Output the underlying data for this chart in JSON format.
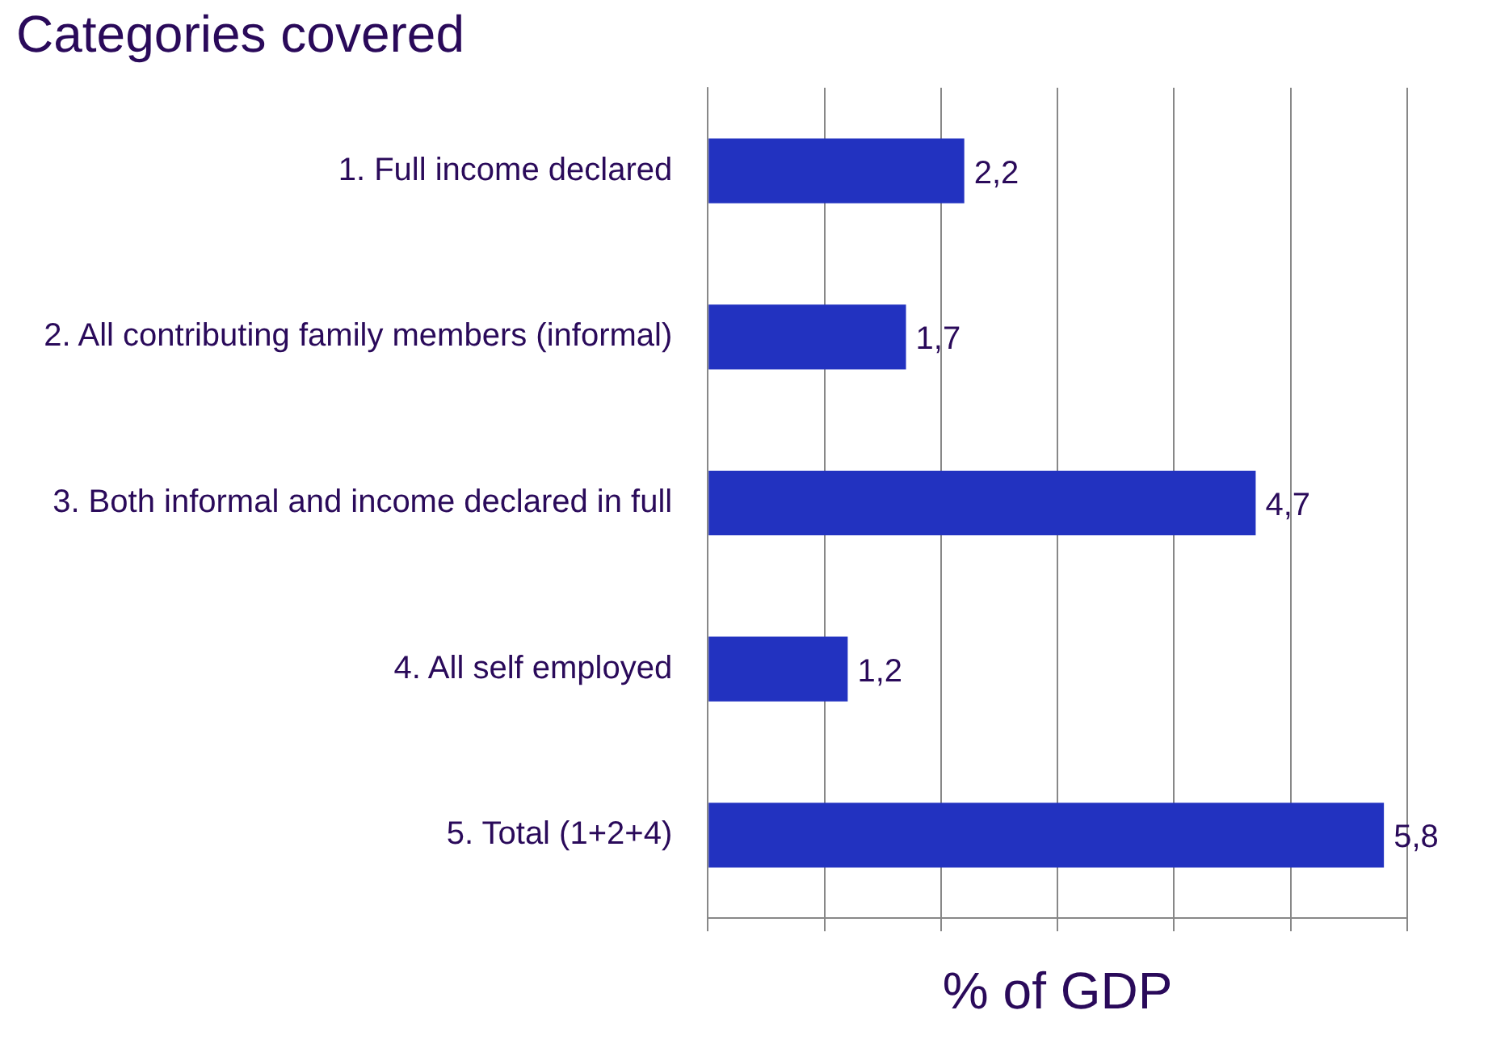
{
  "chart_data": {
    "type": "bar",
    "orientation": "horizontal",
    "title": "Categories covered",
    "xlabel": "% of GDP",
    "categories": [
      "1. Full income declared",
      "2. All contributing family members (informal)",
      "3. Both informal and income declared in full",
      "4. All self employed",
      "5. Total (1+2+4)"
    ],
    "values": [
      2.2,
      1.7,
      4.7,
      1.2,
      5.8
    ],
    "value_labels": [
      "2,2",
      "1,7",
      "4,7",
      "1,2",
      "5,8"
    ],
    "color": "#2232c0",
    "xlim": [
      0,
      6
    ],
    "xticks": [
      {
        "value": 0,
        "label": null
      },
      {
        "value": 1,
        "label": null
      },
      {
        "value": 2,
        "label": null
      },
      {
        "value": 3,
        "label": null
      },
      {
        "value": 4,
        "label": null
      },
      {
        "value": 5,
        "label": null
      },
      {
        "value": 6,
        "label": null
      }
    ],
    "tick_labels": "y",
    "grid": "x",
    "legend": false
  }
}
